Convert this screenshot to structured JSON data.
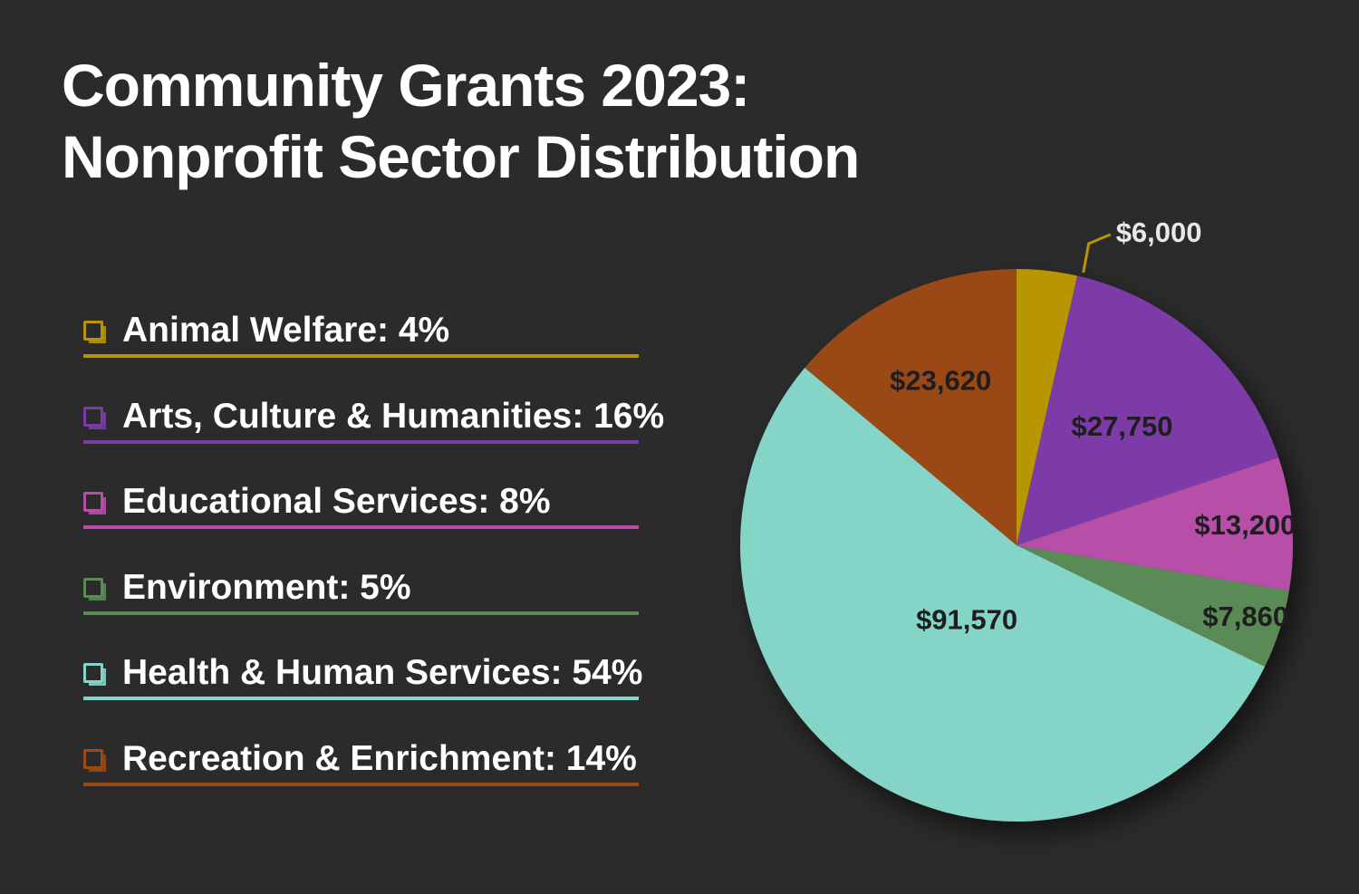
{
  "title": {
    "line1": "Community Grants 2023:",
    "line2": "Nonprofit Sector Distribution"
  },
  "chart_data": {
    "type": "pie",
    "title": "Community Grants 2023: Nonprofit Sector Distribution",
    "legend_placement": "left",
    "slices": [
      {
        "name": "Animal Welfare",
        "value": 6000,
        "label": "$6,000",
        "percent_label": "4%",
        "color": "#b89600"
      },
      {
        "name": "Arts, Culture & Humanities",
        "value": 27750,
        "label": "$27,750",
        "percent_label": "16%",
        "color": "#7b3aa6"
      },
      {
        "name": "Educational Services",
        "value": 13200,
        "label": "$13,200",
        "percent_label": "8%",
        "color": "#b74fa8"
      },
      {
        "name": "Environment",
        "value": 7860,
        "label": "$7,860",
        "percent_label": "5%",
        "color": "#5a8a55"
      },
      {
        "name": "Health & Human Services",
        "value": 91570,
        "label": "$91,570",
        "percent_label": "54%",
        "color": "#84d5c7"
      },
      {
        "name": "Recreation & Enrichment",
        "value": 23620,
        "label": "$23,620",
        "percent_label": "14%",
        "color": "#9a4a12"
      }
    ]
  },
  "legend": {
    "items": [
      {
        "text": "Animal Welfare: 4%",
        "color": "#b89600"
      },
      {
        "text": "Arts, Culture & Humanities: 16%",
        "color": "#7b3aa6"
      },
      {
        "text": "Educational Services: 8%",
        "color": "#b74fa8"
      },
      {
        "text": "Environment: 5%",
        "color": "#5a8a55"
      },
      {
        "text": "Health & Human Services: 54%",
        "color": "#84d5c7"
      },
      {
        "text": "Recreation & Enrichment: 14%",
        "color": "#9a4a12"
      }
    ]
  }
}
